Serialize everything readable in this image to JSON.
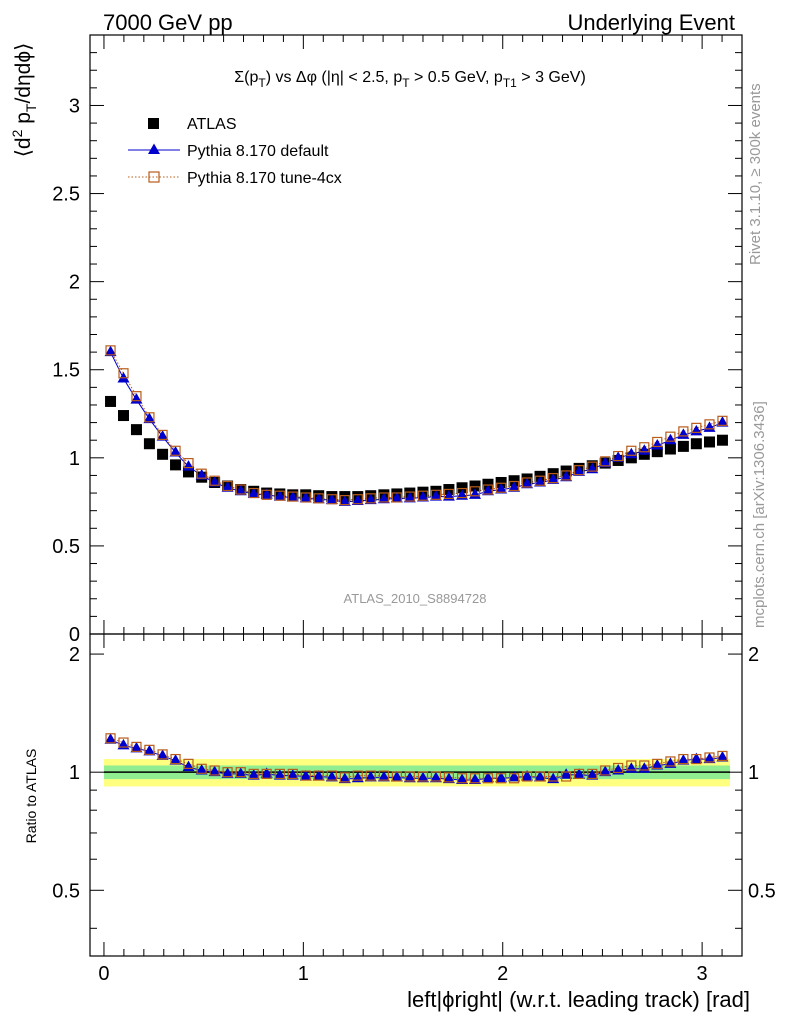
{
  "header": {
    "left": "7000 GeV pp",
    "right": "Underlying Event"
  },
  "side": {
    "rivet": "Rivet 3.1.10, ≥ 300k events",
    "mcplots": "mcplots.cern.ch [arXiv:1306.3436]"
  },
  "chart_data": {
    "type": "scatter",
    "title": "Σ(p_T) vs Δφ (|η| < 2.5, p_T > 0.5 GeV, p_T1 > 3 GeV)",
    "title_parts": {
      "a": "Σ(p",
      "a_sub": "T",
      "b": ") vs Δφ (|η| < 2.5, p",
      "b_sub": "T",
      "c": " > 0.5 GeV, p",
      "c_sub": "T1",
      "d": " > 3 GeV)"
    },
    "watermark": "ATLAS_2010_S8894728",
    "xlabel": "left|ϕright| (w.r.t. leading track) [rad]",
    "ylabel": "⟨d² p_T/dηdϕ⟩",
    "ylabel_parts": {
      "a": "⟨d",
      "a_sup": "2",
      "b": " p",
      "b_sub": "T",
      "c": "/dηdϕ⟩"
    },
    "ratio_ylabel": "Ratio to ATLAS",
    "xlim": [
      -0.07,
      3.2
    ],
    "ylim": [
      0,
      3.4
    ],
    "ratio_ylim": [
      0.34,
      2.25
    ],
    "xticks": [
      "0",
      "1",
      "2",
      "3"
    ],
    "yticks": [
      "0",
      "0.5",
      "1",
      "1.5",
      "2",
      "2.5",
      "3"
    ],
    "ratio_yticks": [
      "0.5",
      "1",
      "2"
    ],
    "x": [
      0.033,
      0.098,
      0.163,
      0.228,
      0.294,
      0.359,
      0.424,
      0.49,
      0.555,
      0.62,
      0.686,
      0.751,
      0.816,
      0.882,
      0.947,
      1.012,
      1.077,
      1.143,
      1.208,
      1.273,
      1.338,
      1.404,
      1.469,
      1.534,
      1.6,
      1.665,
      1.73,
      1.796,
      1.861,
      1.926,
      1.992,
      2.057,
      2.122,
      2.187,
      2.253,
      2.318,
      2.383,
      2.449,
      2.514,
      2.579,
      2.645,
      2.71,
      2.775,
      2.841,
      2.906,
      2.971,
      3.037,
      3.102
    ],
    "series": [
      {
        "name": "ATLAS",
        "color": "#000000",
        "marker": "square",
        "values": [
          1.32,
          1.24,
          1.16,
          1.08,
          1.02,
          0.96,
          0.92,
          0.89,
          0.86,
          0.84,
          0.82,
          0.81,
          0.8,
          0.795,
          0.79,
          0.79,
          0.785,
          0.78,
          0.78,
          0.78,
          0.785,
          0.79,
          0.795,
          0.8,
          0.805,
          0.81,
          0.82,
          0.83,
          0.84,
          0.85,
          0.86,
          0.87,
          0.88,
          0.895,
          0.91,
          0.925,
          0.94,
          0.955,
          0.97,
          0.985,
          1.0,
          1.02,
          1.035,
          1.05,
          1.065,
          1.08,
          1.09,
          1.1
        ]
      },
      {
        "name": "Pythia 8.170 default",
        "color": "#0000cc",
        "marker": "triangle",
        "values": [
          1.6,
          1.45,
          1.33,
          1.22,
          1.12,
          1.03,
          0.95,
          0.9,
          0.86,
          0.83,
          0.81,
          0.795,
          0.79,
          0.78,
          0.775,
          0.77,
          0.765,
          0.76,
          0.75,
          0.755,
          0.76,
          0.765,
          0.77,
          0.77,
          0.775,
          0.78,
          0.78,
          0.785,
          0.79,
          0.81,
          0.82,
          0.83,
          0.85,
          0.86,
          0.875,
          0.89,
          0.92,
          0.935,
          0.97,
          1.0,
          1.02,
          1.04,
          1.07,
          1.1,
          1.13,
          1.15,
          1.17,
          1.2
        ]
      },
      {
        "name": "Pythia 8.170 tune-4cx",
        "color": "#b85c1a",
        "marker": "open-square",
        "values": [
          1.61,
          1.48,
          1.35,
          1.23,
          1.13,
          1.04,
          0.97,
          0.91,
          0.87,
          0.84,
          0.82,
          0.8,
          0.79,
          0.785,
          0.78,
          0.775,
          0.77,
          0.765,
          0.76,
          0.765,
          0.77,
          0.775,
          0.775,
          0.78,
          0.785,
          0.79,
          0.795,
          0.8,
          0.81,
          0.82,
          0.83,
          0.84,
          0.86,
          0.87,
          0.885,
          0.9,
          0.93,
          0.95,
          0.98,
          1.01,
          1.04,
          1.06,
          1.09,
          1.12,
          1.15,
          1.17,
          1.19,
          1.21
        ]
      }
    ],
    "ratio_series": [
      {
        "name": "Pythia 8.170 default",
        "color": "#0000cc",
        "marker": "triangle",
        "values": [
          1.21,
          1.17,
          1.15,
          1.13,
          1.1,
          1.07,
          1.03,
          1.01,
          1.0,
          0.99,
          0.99,
          0.98,
          0.99,
          0.98,
          0.98,
          0.975,
          0.975,
          0.97,
          0.96,
          0.965,
          0.97,
          0.97,
          0.97,
          0.965,
          0.965,
          0.965,
          0.96,
          0.955,
          0.955,
          0.965,
          0.965,
          0.97,
          0.975,
          0.97,
          0.96,
          0.985,
          0.985,
          0.98,
          1.0,
          1.01,
          1.02,
          1.02,
          1.04,
          1.05,
          1.07,
          1.08,
          1.08,
          1.09
        ]
      },
      {
        "name": "Pythia 8.170 tune-4cx",
        "color": "#b85c1a",
        "marker": "open-square",
        "values": [
          1.22,
          1.19,
          1.16,
          1.14,
          1.11,
          1.08,
          1.05,
          1.02,
          1.01,
          1.0,
          1.0,
          0.99,
          0.99,
          0.99,
          0.99,
          0.98,
          0.98,
          0.98,
          0.97,
          0.98,
          0.98,
          0.98,
          0.975,
          0.975,
          0.975,
          0.975,
          0.97,
          0.965,
          0.965,
          0.965,
          0.965,
          0.965,
          0.975,
          0.975,
          0.975,
          0.975,
          0.99,
          0.99,
          1.01,
          1.025,
          1.04,
          1.04,
          1.05,
          1.065,
          1.08,
          1.08,
          1.09,
          1.1
        ]
      }
    ],
    "uncertainty_bands": {
      "inner_color": "#90ee90",
      "outer_color": "#ffff80",
      "inner": [
        0.96,
        1.04
      ],
      "outer": [
        0.92,
        1.08
      ]
    },
    "legend_position": "top-left",
    "grid": false
  }
}
